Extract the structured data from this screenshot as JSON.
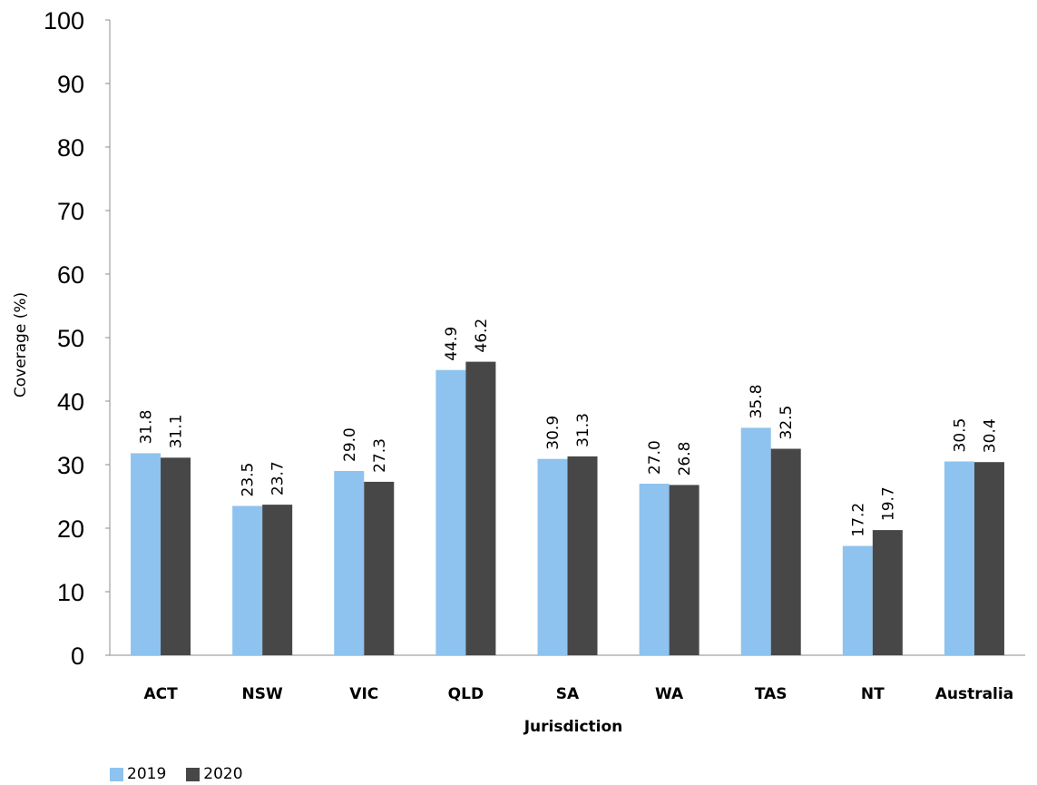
{
  "chart_data": {
    "type": "bar",
    "categories": [
      "ACT",
      "NSW",
      "VIC",
      "QLD",
      "SA",
      "WA",
      "TAS",
      "NT",
      "Australia"
    ],
    "series": [
      {
        "name": "2019",
        "color": "#8DC3EE",
        "values": [
          31.8,
          23.5,
          29.0,
          44.9,
          30.9,
          27.0,
          35.8,
          17.2,
          30.5
        ],
        "labels": [
          "31.8",
          "23.5",
          "29.0",
          "44.9",
          "30.9",
          "27.0",
          "35.8",
          "17.2",
          "30.5"
        ]
      },
      {
        "name": "2020",
        "color": "#474747",
        "values": [
          31.1,
          23.7,
          27.3,
          46.2,
          31.3,
          26.8,
          32.5,
          19.7,
          30.4
        ],
        "labels": [
          "31.1",
          "23.7",
          "27.3",
          "46.2",
          "31.3",
          "26.8",
          "32.5",
          "19.7",
          "30.4"
        ]
      }
    ],
    "xlabel": "Jurisdiction",
    "ylabel": "Coverage (%)",
    "ylim": [
      0,
      100
    ],
    "yticks": [
      0,
      10,
      20,
      30,
      40,
      50,
      60,
      70,
      80,
      90,
      100
    ],
    "grid": false,
    "legend_position": "bottom-left"
  }
}
